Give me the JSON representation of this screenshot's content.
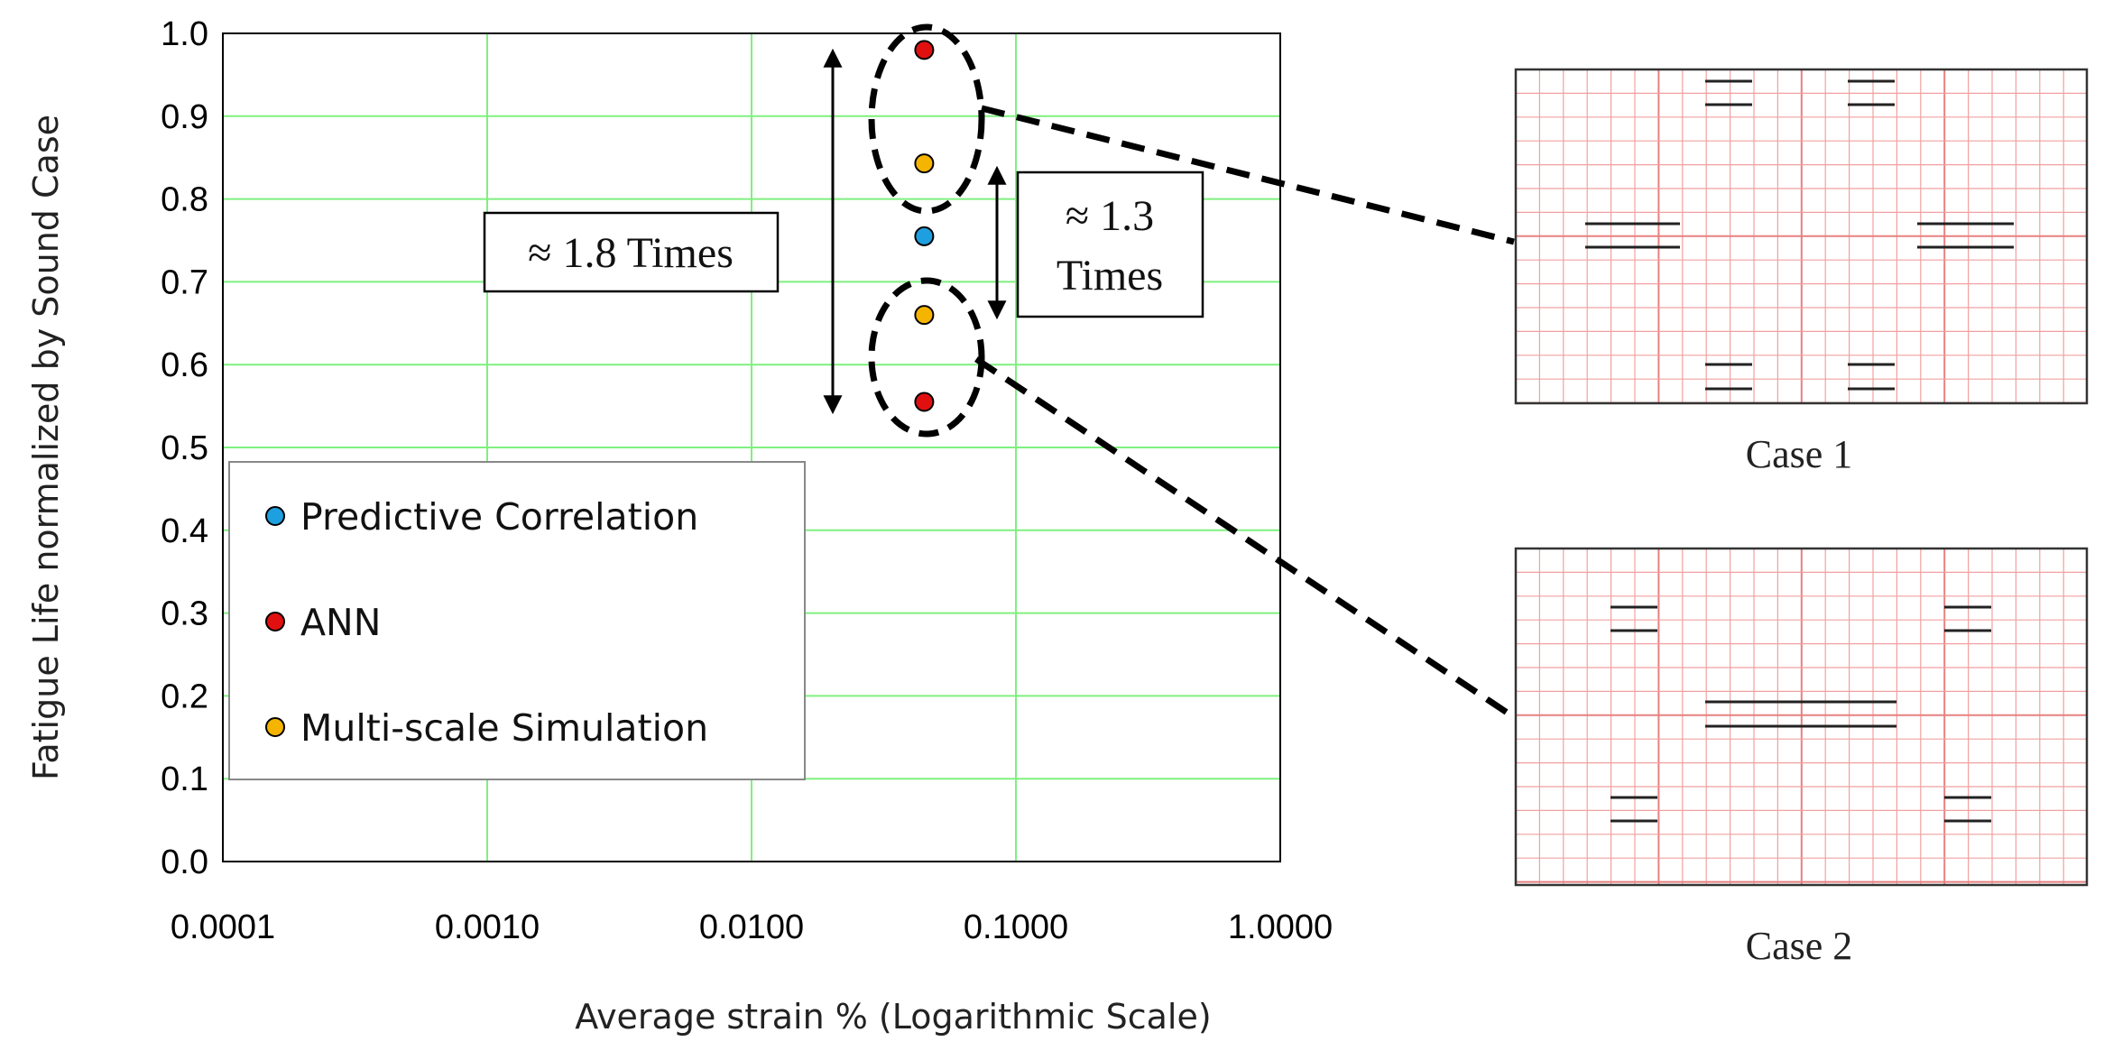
{
  "chart_data": {
    "type": "scatter",
    "title": "",
    "xlabel": "Average strain % (Logarithmic Scale)",
    "ylabel": "Fatigue Life normalized by Sound Case",
    "x_scale": "log",
    "xlim": [
      0.0001,
      1.0
    ],
    "ylim": [
      0.0,
      1.0
    ],
    "grid": true,
    "x_ticks": [
      "0.0001",
      "0.0010",
      "0.0100",
      "0.1000",
      "1.0000"
    ],
    "y_ticks": [
      "0.0",
      "0.1",
      "0.2",
      "0.3",
      "0.4",
      "0.5",
      "0.6",
      "0.7",
      "0.8",
      "0.9",
      "1.0"
    ],
    "series": [
      {
        "name": "Predictive Correlation",
        "color": "#1ea0e0",
        "points": [
          {
            "x": 0.045,
            "y": 0.755
          }
        ]
      },
      {
        "name": "ANN",
        "color": "#e01010",
        "points": [
          {
            "x": 0.045,
            "y": 0.98
          },
          {
            "x": 0.045,
            "y": 0.555
          }
        ]
      },
      {
        "name": "Multi-scale Simulation",
        "color": "#f5b400",
        "points": [
          {
            "x": 0.045,
            "y": 0.843
          },
          {
            "x": 0.045,
            "y": 0.66
          }
        ]
      }
    ],
    "legend_position": "bottom-left",
    "annotations": [
      {
        "text": "≈ 1.8 Times",
        "y_range": [
          0.55,
          0.98
        ]
      },
      {
        "text_line1": "≈ 1.3",
        "text_line2": "Times",
        "y_range": [
          0.66,
          0.843
        ]
      }
    ]
  },
  "cases": [
    {
      "label": "Case 1"
    },
    {
      "label": "Case 2"
    }
  ],
  "colors": {
    "grid": "#7ff07f",
    "case_grid": "#f2a0a0",
    "case_grid_major": "#e88080"
  }
}
